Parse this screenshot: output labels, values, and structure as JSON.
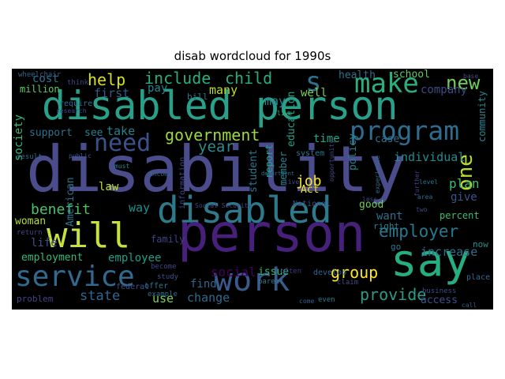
{
  "figure": {
    "title": "disab wordcloud for 1990s"
  },
  "words": [
    {
      "id": "disability",
      "text": "disability",
      "color": "#4b4c8c"
    },
    {
      "id": "disabled-person",
      "text": "disabled person",
      "color": "#28a08a"
    },
    {
      "id": "disabled",
      "text": "disabled",
      "color": "#2e7a8a"
    },
    {
      "id": "person",
      "text": "person",
      "color": "#46207a"
    },
    {
      "id": "will",
      "text": "will",
      "color": "#c7e040"
    },
    {
      "id": "say",
      "text": "say",
      "color": "#27ad81"
    },
    {
      "id": "work",
      "text": "work",
      "color": "#3b5a8c"
    },
    {
      "id": "service",
      "text": "service",
      "color": "#306a8e"
    },
    {
      "id": "program",
      "text": "program",
      "color": "#2f6c8e"
    },
    {
      "id": "make",
      "text": "make",
      "color": "#2ab07f"
    },
    {
      "id": "s",
      "text": "s",
      "color": "#2c728e"
    },
    {
      "id": "need",
      "text": "need",
      "color": "#3a528b"
    },
    {
      "id": "new",
      "text": "new",
      "color": "#6ece58"
    },
    {
      "id": "one",
      "text": "one",
      "color": "#b5de2b"
    },
    {
      "id": "include",
      "text": "include",
      "color": "#29af7f"
    },
    {
      "id": "child",
      "text": "child",
      "color": "#27ad81"
    },
    {
      "id": "help",
      "text": "help",
      "color": "#d8e219"
    },
    {
      "id": "government",
      "text": "government",
      "color": "#9dd93b"
    },
    {
      "id": "year",
      "text": "year",
      "color": "#2c8c8d"
    },
    {
      "id": "employer",
      "text": "employer",
      "color": "#2a788e"
    },
    {
      "id": "group",
      "text": "group",
      "color": "#fde725"
    },
    {
      "id": "provide",
      "text": "provide",
      "color": "#2c9c89"
    },
    {
      "id": "state",
      "text": "state",
      "color": "#31668e"
    },
    {
      "id": "benefit",
      "text": "benefit",
      "color": "#4ac16d"
    },
    {
      "id": "job",
      "text": "job",
      "color": "#fde725"
    },
    {
      "id": "plan",
      "text": "plan",
      "color": "#3fbc73"
    },
    {
      "id": "give",
      "text": "give",
      "color": "#38588c"
    },
    {
      "id": "cost",
      "text": "cost",
      "color": "#2b758e"
    },
    {
      "id": "pay",
      "text": "pay",
      "color": "#24878e"
    },
    {
      "id": "first",
      "text": "first",
      "color": "#38598c"
    },
    {
      "id": "many",
      "text": "many",
      "color": "#c2df23"
    },
    {
      "id": "may",
      "text": "may",
      "color": "#24868e"
    },
    {
      "id": "well",
      "text": "well",
      "color": "#7ad151"
    },
    {
      "id": "health",
      "text": "health",
      "color": "#2c718e"
    },
    {
      "id": "school",
      "text": "school",
      "color": "#60ca60"
    },
    {
      "id": "company",
      "text": "company",
      "color": "#3e4989"
    },
    {
      "id": "community",
      "text": "community",
      "color": "#25848e"
    },
    {
      "id": "individual",
      "text": "individual",
      "color": "#228b8d"
    },
    {
      "id": "percent",
      "text": "percent",
      "color": "#3dbc74"
    },
    {
      "id": "want",
      "text": "want",
      "color": "#2d718e"
    },
    {
      "id": "right",
      "text": "right",
      "color": "#26828e"
    },
    {
      "id": "good",
      "text": "good",
      "color": "#6ccd5a"
    },
    {
      "id": "increase",
      "text": "increase",
      "color": "#2e6f8e"
    },
    {
      "id": "now",
      "text": "now",
      "color": "#21918c"
    },
    {
      "id": "go",
      "text": "go",
      "color": "#2a788e"
    },
    {
      "id": "issue",
      "text": "issue",
      "color": "#35b779"
    },
    {
      "id": "social",
      "text": "social",
      "color": "#44015a"
    },
    {
      "id": "find",
      "text": "find",
      "color": "#32648e"
    },
    {
      "id": "change",
      "text": "change",
      "color": "#2f6b8e"
    },
    {
      "id": "use",
      "text": "use",
      "color": "#7ad151"
    },
    {
      "id": "employment",
      "text": "employment",
      "color": "#37b878"
    },
    {
      "id": "employee",
      "text": "employee",
      "color": "#1f9e89"
    },
    {
      "id": "woman",
      "text": "woman",
      "color": "#b5de2b"
    },
    {
      "id": "life",
      "text": "life",
      "color": "#3c4f8a"
    },
    {
      "id": "law",
      "text": "law",
      "color": "#bddf26"
    },
    {
      "id": "support",
      "text": "support",
      "color": "#2d708e"
    },
    {
      "id": "take",
      "text": "take",
      "color": "#26818e"
    },
    {
      "id": "see",
      "text": "see",
      "color": "#27808e"
    },
    {
      "id": "society",
      "text": "society",
      "color": "#35b779"
    },
    {
      "id": "report",
      "text": "report",
      "color": "#22a785"
    },
    {
      "id": "time",
      "text": "time",
      "color": "#21a585"
    },
    {
      "id": "way",
      "text": "way",
      "color": "#21908d"
    },
    {
      "id": "family",
      "text": "family",
      "color": "#404387"
    },
    {
      "id": "Act",
      "text": "Act",
      "color": "#f4e61e"
    },
    {
      "id": "case",
      "text": "case",
      "color": "#2d718e"
    },
    {
      "id": "policy",
      "text": "policy",
      "color": "#26828e"
    },
    {
      "id": "student",
      "text": "student",
      "color": "#2a788e"
    },
    {
      "id": "education",
      "text": "education",
      "color": "#1fa187"
    },
    {
      "id": "member",
      "text": "member",
      "color": "#27808e"
    },
    {
      "id": "American",
      "text": "American",
      "color": "#2c738e"
    },
    {
      "id": "access",
      "text": "access",
      "color": "#3b528b"
    },
    {
      "id": "problem",
      "text": "problem",
      "color": "#404588"
    },
    {
      "id": "million",
      "text": "million",
      "color": "#62cb5f"
    },
    {
      "id": "think",
      "text": "think",
      "color": "#404588"
    },
    {
      "id": "bill",
      "text": "bill",
      "color": "#2d708e"
    },
    {
      "id": "National",
      "text": "National",
      "color": "#3b528b"
    },
    {
      "id": "Social-Security",
      "text": "Social Security",
      "color": "#3f4889"
    },
    {
      "id": "system",
      "text": "system",
      "color": "#2a778e"
    },
    {
      "id": "information",
      "text": "information",
      "color": "#404688"
    },
    {
      "id": "study",
      "text": "study",
      "color": "#3b528b"
    },
    {
      "id": "develop",
      "text": "develop",
      "color": "#32658e"
    },
    {
      "id": "parent",
      "text": "parent",
      "color": "#2a788e"
    },
    {
      "id": "often",
      "text": "often",
      "color": "#46337e"
    },
    {
      "id": "claim",
      "text": "claim",
      "color": "#3e4c8a"
    },
    {
      "id": "business",
      "text": "business",
      "color": "#3e4a89"
    },
    {
      "id": "even",
      "text": "even",
      "color": "#2a788e"
    },
    {
      "id": "come",
      "text": "come",
      "color": "#34618d"
    },
    {
      "id": "federal",
      "text": "federal",
      "color": "#3b528b"
    },
    {
      "id": "offer",
      "text": "offer",
      "color": "#2b748e"
    },
    {
      "id": "become",
      "text": "become",
      "color": "#3f4788"
    },
    {
      "id": "example",
      "text": "example",
      "color": "#2d718e"
    },
    {
      "id": "require",
      "text": "require",
      "color": "#2e6e8e"
    },
    {
      "id": "wheelchair",
      "text": "wheelchair",
      "color": "#34618d"
    },
    {
      "id": "research",
      "text": "research",
      "color": "#3e4989"
    },
    {
      "id": "result",
      "text": "result",
      "color": "#2f6b8e"
    },
    {
      "id": "public",
      "text": "public",
      "color": "#38588c"
    },
    {
      "id": "income",
      "text": "income",
      "color": "#31658e"
    },
    {
      "id": "must",
      "text": "must",
      "color": "#24878e"
    },
    {
      "id": "opportunity",
      "text": "opportunity",
      "color": "#3f4889"
    },
    {
      "id": "level",
      "text": "level",
      "color": "#2c728e"
    },
    {
      "id": "experience",
      "text": "experience",
      "color": "#2e6e8e"
    },
    {
      "id": "place",
      "text": "place",
      "color": "#306a8e"
    },
    {
      "id": "base",
      "text": "base",
      "color": "#3c4f8a"
    },
    {
      "id": "call",
      "text": "call",
      "color": "#3b528b"
    },
    {
      "id": "return",
      "text": "return",
      "color": "#3f4788"
    },
    {
      "id": "department",
      "text": "department",
      "color": "#2c728e"
    },
    {
      "id": "live",
      "text": "live",
      "color": "#3e4c8a"
    },
    {
      "id": "live2",
      "text": "live",
      "color": "#35b779"
    },
    {
      "id": "area",
      "text": "area",
      "color": "#2e6f8e"
    },
    {
      "id": "further",
      "text": "further",
      "color": "#414487"
    },
    {
      "id": "two",
      "text": "two",
      "color": "#3e4c8a"
    },
    {
      "id": "less",
      "text": "less",
      "color": "#3f4889"
    }
  ]
}
